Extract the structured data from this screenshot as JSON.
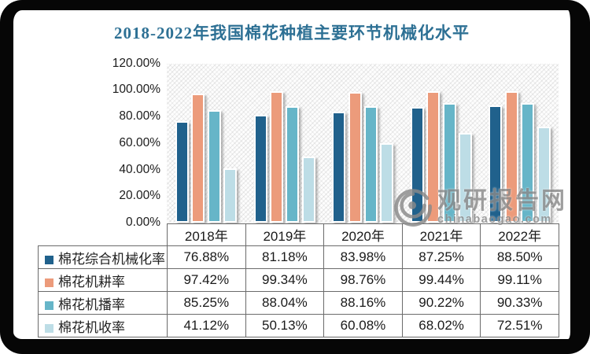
{
  "title": {
    "text": "2018-2022年我国棉花种植主要环节机械化水平",
    "color": "#2d7094"
  },
  "chart_data": {
    "type": "bar",
    "title": "2018-2022年我国棉花种植主要环节机械化水平",
    "categories": [
      "2018年",
      "2019年",
      "2020年",
      "2021年",
      "2022年"
    ],
    "series": [
      {
        "name": "棉花综合机械化率",
        "color": "#20618c",
        "values": [
          76.88,
          81.18,
          83.98,
          87.25,
          88.5
        ]
      },
      {
        "name": "棉花机耕率",
        "color": "#ec9b7b",
        "values": [
          97.42,
          99.34,
          98.76,
          99.44,
          99.11
        ]
      },
      {
        "name": "棉花机播率",
        "color": "#66b5c8",
        "values": [
          85.25,
          88.04,
          88.16,
          90.22,
          90.33
        ]
      },
      {
        "name": "棉花机收率",
        "color": "#bddde6",
        "values": [
          41.12,
          50.13,
          60.08,
          68.02,
          72.51
        ]
      }
    ],
    "y_ticks": [
      "120.00%",
      "100.00%",
      "80.00%",
      "60.00%",
      "40.00%",
      "20.00%",
      "0.00%"
    ],
    "ylim": [
      0,
      120
    ],
    "grid": false,
    "plot_background": "diagonal-hatch",
    "legend_position": "table-first-column"
  },
  "table": {
    "corner": "",
    "columns": [
      "2018年",
      "2019年",
      "2020年",
      "2021年",
      "2022年"
    ],
    "rows": [
      {
        "label": "棉花综合机械化率",
        "values": [
          "76.88%",
          "81.18%",
          "83.98%",
          "87.25%",
          "88.50%"
        ]
      },
      {
        "label": "棉花机耕率",
        "values": [
          "97.42%",
          "99.34%",
          "98.76%",
          "99.44%",
          "99.11%"
        ]
      },
      {
        "label": "棉花机播率",
        "values": [
          "85.25%",
          "88.04%",
          "88.16%",
          "90.22%",
          "90.33%"
        ]
      },
      {
        "label": "棉花机收率",
        "values": [
          "41.12%",
          "50.13%",
          "60.08%",
          "68.02%",
          "72.51%"
        ]
      }
    ]
  },
  "watermark": {
    "brand": "观研报告网",
    "domain": "chinabaogao.com",
    "logo": "swirl-eye-logo",
    "color": "#8a8a8a"
  },
  "frame": {
    "border_color": "#060606",
    "background": "#ffffff"
  }
}
